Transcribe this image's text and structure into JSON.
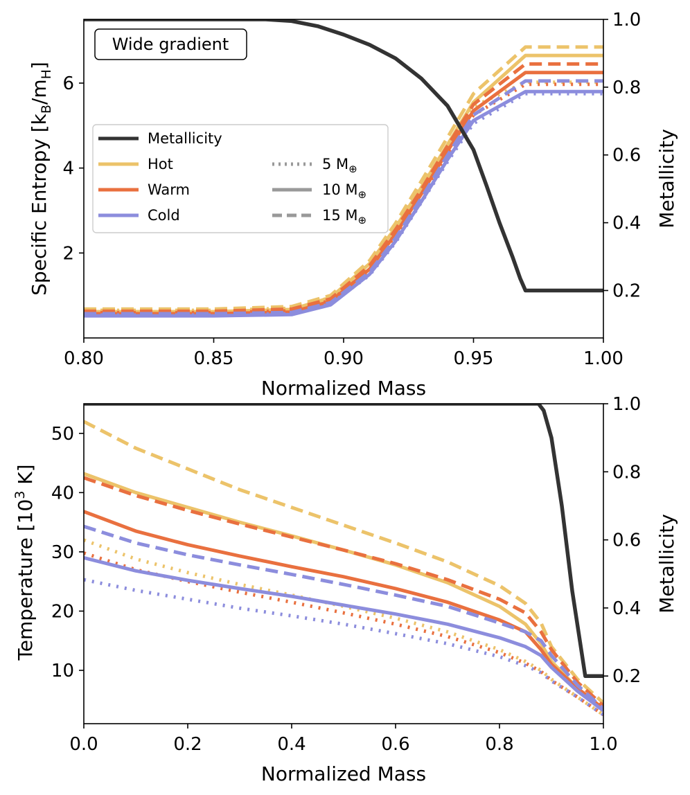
{
  "colors": {
    "hot": "#ecc36a",
    "warm": "#e9703f",
    "cold": "#8c8ddd",
    "metallicity": "#333333"
  },
  "chart_data": [
    {
      "type": "line",
      "title": "",
      "annotation": "Wide gradient",
      "xlabel": "Normalized Mass",
      "ylabel": "Specific Entropy [k",
      "ylabel_sub1": "B",
      "ylabel_mid": "/m",
      "ylabel_sub2": "H",
      "ylabel_end": "]",
      "y2label": "Metallicity",
      "xlim": [
        0.8,
        1.0
      ],
      "ylim": [
        0.0,
        7.5
      ],
      "y2lim": [
        0.06,
        1.0
      ],
      "xticks": [
        "0.80",
        "0.85",
        "0.90",
        "0.95",
        "1.00"
      ],
      "yticks": [
        "2",
        "4",
        "6"
      ],
      "y2ticks": [
        "0.2",
        "0.4",
        "0.6",
        "0.8",
        "1.0"
      ],
      "legend": {
        "location": "center-left",
        "entries": [
          "Metallicity",
          "Hot",
          "Warm",
          "Cold"
        ],
        "style_entries": [
          "5 M",
          "10 M",
          "15 M"
        ],
        "earth_symbol": "⊕"
      },
      "metallicity": {
        "x": [
          0.8,
          0.87,
          0.88,
          0.89,
          0.9,
          0.91,
          0.92,
          0.93,
          0.94,
          0.95,
          0.955,
          0.96,
          0.965,
          0.968,
          0.97,
          1.0
        ],
        "y": [
          1.0,
          1.0,
          0.995,
          0.98,
          0.955,
          0.925,
          0.885,
          0.825,
          0.745,
          0.615,
          0.51,
          0.4,
          0.3,
          0.235,
          0.2,
          0.2
        ]
      },
      "series": [
        {
          "name": "Hot 5 M",
          "temp": "hot",
          "mass": 5,
          "values": [
            0.65,
            0.65,
            0.7,
            0.95,
            1.72,
            2.55,
            3.5,
            4.5,
            5.45,
            6.02,
            6.02
          ]
        },
        {
          "name": "Hot 10 M",
          "temp": "hot",
          "mass": 10,
          "values": [
            0.62,
            0.62,
            0.67,
            0.95,
            1.75,
            2.6,
            3.55,
            4.55,
            5.55,
            6.65,
            6.65
          ]
        },
        {
          "name": "Hot 15 M",
          "temp": "hot",
          "mass": 15,
          "values": [
            0.68,
            0.68,
            0.74,
            1.0,
            1.82,
            2.7,
            3.7,
            4.72,
            5.75,
            6.85,
            6.85
          ]
        },
        {
          "name": "Warm 5 M",
          "temp": "warm",
          "mass": 5,
          "values": [
            0.6,
            0.6,
            0.64,
            0.88,
            1.6,
            2.42,
            3.35,
            4.35,
            5.25,
            5.97,
            5.97
          ]
        },
        {
          "name": "Warm 10 M",
          "temp": "warm",
          "mass": 10,
          "values": [
            0.57,
            0.57,
            0.61,
            0.86,
            1.62,
            2.45,
            3.4,
            4.4,
            5.35,
            6.25,
            6.25
          ]
        },
        {
          "name": "Warm 15 M",
          "temp": "warm",
          "mass": 15,
          "values": [
            0.63,
            0.63,
            0.68,
            0.92,
            1.7,
            2.55,
            3.5,
            4.52,
            5.5,
            6.45,
            6.45
          ]
        },
        {
          "name": "Cold 5 M",
          "temp": "cold",
          "mass": 5,
          "values": [
            0.54,
            0.54,
            0.57,
            0.8,
            1.48,
            2.25,
            3.2,
            4.15,
            5.05,
            5.75,
            5.75
          ]
        },
        {
          "name": "Cold 10 M",
          "temp": "cold",
          "mass": 10,
          "values": [
            0.52,
            0.52,
            0.55,
            0.78,
            1.5,
            2.28,
            3.22,
            4.2,
            5.12,
            5.8,
            5.8
          ]
        },
        {
          "name": "Cold 15 M",
          "temp": "cold",
          "mass": 15,
          "values": [
            0.57,
            0.57,
            0.6,
            0.83,
            1.55,
            2.35,
            3.3,
            4.3,
            5.25,
            6.05,
            6.05
          ]
        }
      ],
      "x": [
        0.8,
        0.85,
        0.88,
        0.895,
        0.91,
        0.92,
        0.93,
        0.94,
        0.95,
        0.97,
        1.0
      ]
    },
    {
      "type": "line",
      "title": "",
      "xlabel": "Normalized Mass",
      "ylabel": "Temperature [10",
      "ylabel_sup": "3",
      "ylabel_end": " K]",
      "y2label": "Metallicity",
      "xlim": [
        0.0,
        1.0
      ],
      "ylim": [
        1.0,
        55.0
      ],
      "y2lim": [
        0.06,
        1.0
      ],
      "xticks": [
        "0.0",
        "0.2",
        "0.4",
        "0.6",
        "0.8",
        "1.0"
      ],
      "yticks": [
        "10",
        "20",
        "30",
        "40",
        "50"
      ],
      "y2ticks": [
        "0.2",
        "0.4",
        "0.6",
        "0.8",
        "1.0"
      ],
      "metallicity": {
        "x": [
          0.0,
          0.875,
          0.885,
          0.9,
          0.92,
          0.94,
          0.955,
          0.965,
          0.97,
          1.0
        ],
        "y": [
          1.0,
          1.0,
          0.98,
          0.9,
          0.7,
          0.45,
          0.3,
          0.2,
          0.2,
          0.2
        ]
      },
      "x": [
        0.0,
        0.1,
        0.2,
        0.3,
        0.4,
        0.5,
        0.6,
        0.7,
        0.8,
        0.85,
        0.88,
        0.9,
        0.95,
        1.0
      ],
      "series": [
        {
          "name": "Hot 5 M",
          "temp": "hot",
          "mass": 5,
          "values": [
            32.0,
            28.8,
            26.5,
            24.5,
            22.7,
            20.8,
            18.8,
            16.5,
            13.5,
            11.5,
            10.0,
            8.5,
            5.5,
            2.5
          ]
        },
        {
          "name": "Hot 10 M",
          "temp": "hot",
          "mass": 10,
          "values": [
            43.2,
            40.0,
            37.5,
            35.0,
            32.7,
            30.3,
            27.8,
            24.8,
            20.8,
            17.8,
            14.5,
            11.5,
            7.0,
            3.5
          ]
        },
        {
          "name": "Hot 15 M",
          "temp": "hot",
          "mass": 15,
          "values": [
            52.0,
            47.5,
            44.0,
            40.5,
            37.5,
            34.5,
            31.5,
            28.3,
            24.3,
            21.3,
            18.0,
            14.0,
            8.5,
            4.5
          ]
        },
        {
          "name": "Warm 5 M",
          "temp": "warm",
          "mass": 5,
          "values": [
            29.8,
            27.0,
            25.0,
            23.2,
            21.5,
            19.7,
            17.8,
            15.7,
            13.0,
            11.2,
            9.8,
            8.3,
            5.5,
            2.5
          ]
        },
        {
          "name": "Warm 10 M",
          "temp": "warm",
          "mass": 10,
          "values": [
            36.8,
            33.5,
            31.2,
            29.3,
            27.5,
            25.8,
            23.8,
            21.5,
            18.5,
            16.5,
            13.5,
            11.0,
            7.0,
            3.5
          ]
        },
        {
          "name": "Warm 15 M",
          "temp": "warm",
          "mass": 15,
          "values": [
            42.5,
            39.5,
            37.0,
            34.7,
            32.5,
            30.3,
            28.0,
            25.3,
            22.0,
            19.7,
            16.5,
            13.5,
            8.0,
            4.0
          ]
        },
        {
          "name": "Cold 5 M",
          "temp": "cold",
          "mass": 5,
          "values": [
            25.3,
            23.5,
            22.0,
            20.5,
            19.2,
            17.8,
            16.2,
            14.5,
            12.3,
            10.8,
            9.6,
            8.2,
            5.5,
            2.5
          ]
        },
        {
          "name": "Cold 10 M",
          "temp": "cold",
          "mass": 10,
          "values": [
            29.0,
            26.8,
            25.2,
            23.8,
            22.5,
            21.0,
            19.5,
            17.8,
            15.5,
            14.0,
            12.5,
            10.5,
            6.5,
            3.2
          ]
        },
        {
          "name": "Cold 15 M",
          "temp": "cold",
          "mass": 15,
          "values": [
            34.3,
            31.5,
            29.5,
            27.8,
            26.2,
            24.5,
            22.7,
            20.8,
            18.0,
            16.5,
            15.0,
            12.5,
            7.5,
            3.5
          ]
        }
      ]
    }
  ]
}
